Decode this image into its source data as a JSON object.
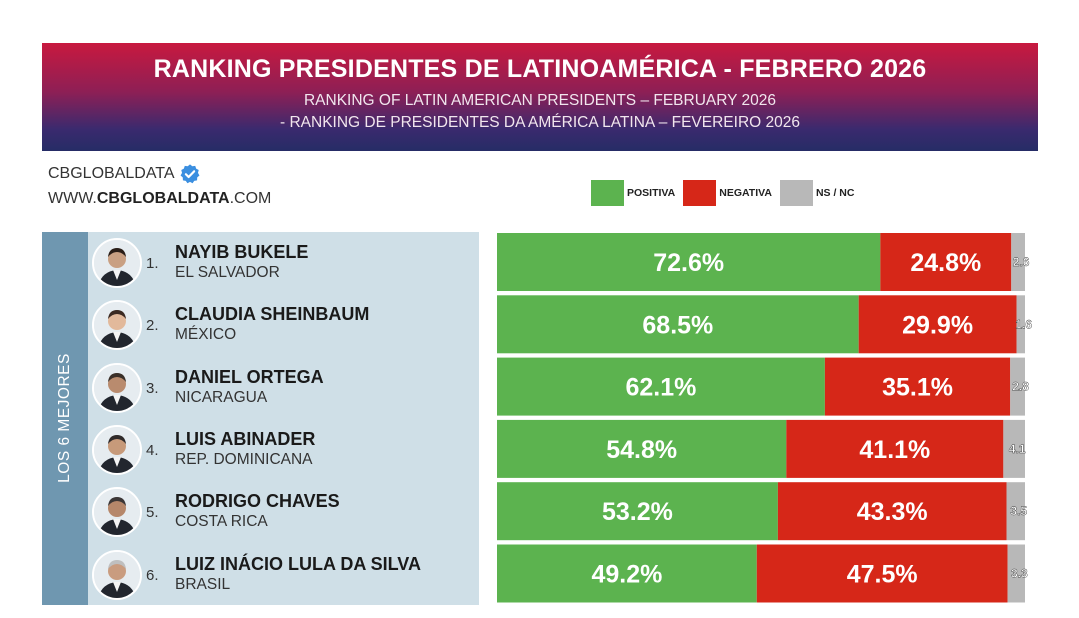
{
  "header": {
    "title": "RANKING PRESIDENTES DE LATINOAMÉRICA - FEBRERO 2026",
    "subtitle_en": "RANKING OF LATIN AMERICAN PRESIDENTS – FEBRUARY 2026",
    "subtitle_pt": "- RANKING DE PRESIDENTES DA AMÉRICA LATINA – FEVEREIRO 2026"
  },
  "brand": {
    "name": "CBGLOBALDATA",
    "url_prefix": "WWW.",
    "url_bold": "CBGLOBALDATA",
    "url_suffix": ".COM",
    "verified_icon": "verified-badge-icon"
  },
  "legend": [
    {
      "label": "POSITIVA",
      "color": "#5cb34f"
    },
    {
      "label": "NEGATIVA",
      "color": "#d62718"
    },
    {
      "label": "NS / NC",
      "color": "#b8b8b8"
    }
  ],
  "side_label": "LOS 6 MEJORES",
  "chart_data": {
    "type": "bar",
    "orientation": "horizontal-stacked",
    "categories": [
      "NAYIB BUKELE",
      "CLAUDIA SHEINBAUM",
      "DANIEL ORTEGA",
      "LUIS ABINADER",
      "RODRIGO CHAVES",
      "LUIZ INÁCIO LULA DA SILVA"
    ],
    "countries": [
      "EL SALVADOR",
      "MÉXICO",
      "NICARAGUA",
      "REP. DOMINICANA",
      "COSTA RICA",
      "BRASIL"
    ],
    "ranks": [
      "1.",
      "2.",
      "3.",
      "4.",
      "5.",
      "6."
    ],
    "series": [
      {
        "name": "POSITIVA",
        "color": "#5cb34f",
        "values": [
          72.6,
          68.5,
          62.1,
          54.8,
          53.2,
          49.2
        ],
        "labels": [
          "72.6%",
          "68.5%",
          "62.1%",
          "54.8%",
          "53.2%",
          "49.2%"
        ]
      },
      {
        "name": "NEGATIVA",
        "color": "#d62718",
        "values": [
          24.8,
          29.9,
          35.1,
          41.1,
          43.3,
          47.5
        ],
        "labels": [
          "24.8%",
          "29.9%",
          "35.1%",
          "41.1%",
          "43.3%",
          "47.5%"
        ]
      },
      {
        "name": "NS / NC",
        "color": "#b8b8b8",
        "values": [
          2.6,
          1.6,
          2.8,
          4.1,
          3.5,
          3.3
        ],
        "labels": [
          "2.6",
          "1.6",
          "2.8",
          "4.1",
          "3.5",
          "3.3"
        ]
      }
    ],
    "xlim": [
      0,
      100
    ]
  }
}
